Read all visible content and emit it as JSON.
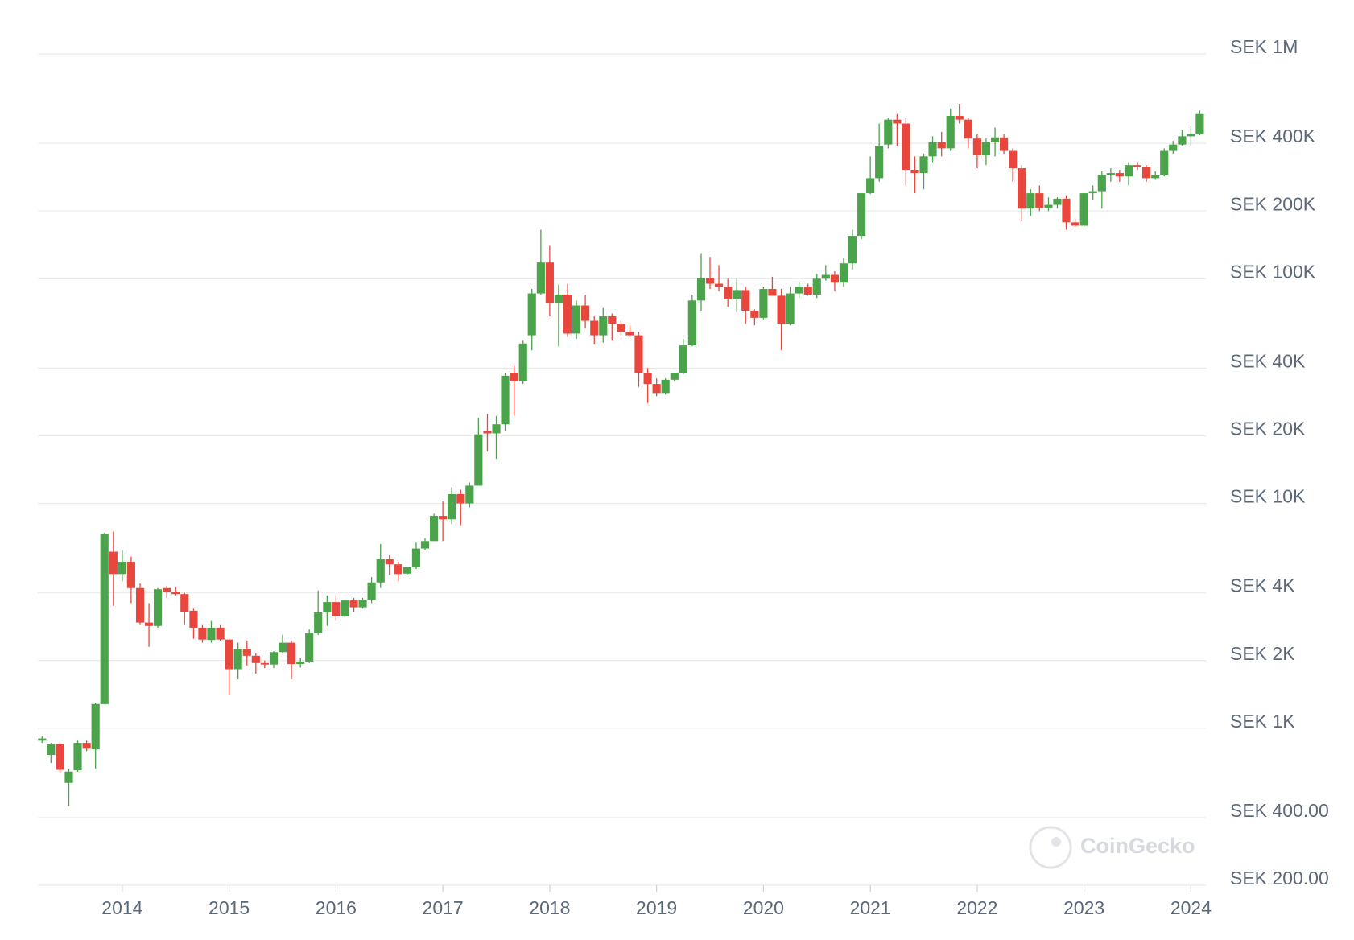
{
  "chart_data": {
    "type": "candlestick",
    "watermark": "CoinGecko",
    "up_color": "#4ba44b",
    "down_color": "#e9473e",
    "log_scale_y": true,
    "grid": true,
    "xlim": [
      2013.21,
      2024.14
    ],
    "xticks": [
      2014,
      2015,
      2016,
      2017,
      2018,
      2019,
      2020,
      2021,
      2022,
      2023,
      2024
    ],
    "ylim": [
      200,
      1000000
    ],
    "yticks": [
      {
        "value": 200,
        "label": "SEK 200.00"
      },
      {
        "value": 400,
        "label": "SEK 400.00"
      },
      {
        "value": 1000,
        "label": "SEK 1K"
      },
      {
        "value": 2000,
        "label": "SEK 2K"
      },
      {
        "value": 4000,
        "label": "SEK 4K"
      },
      {
        "value": 10000,
        "label": "SEK 10K"
      },
      {
        "value": 20000,
        "label": "SEK 20K"
      },
      {
        "value": 40000,
        "label": "SEK 40K"
      },
      {
        "value": 100000,
        "label": "SEK 100K"
      },
      {
        "value": 200000,
        "label": "SEK 200K"
      },
      {
        "value": 400000,
        "label": "SEK 400K"
      },
      {
        "value": 1000000,
        "label": "SEK 1M"
      }
    ],
    "x": [
      2013.25,
      2013.333,
      2013.417,
      2013.5,
      2013.583,
      2013.667,
      2013.75,
      2013.833,
      2013.917,
      2014,
      2014.083,
      2014.167,
      2014.25,
      2014.333,
      2014.417,
      2014.5,
      2014.583,
      2014.667,
      2014.75,
      2014.833,
      2014.917,
      2015,
      2015.083,
      2015.167,
      2015.25,
      2015.333,
      2015.417,
      2015.5,
      2015.583,
      2015.667,
      2015.75,
      2015.833,
      2015.917,
      2016,
      2016.083,
      2016.167,
      2016.25,
      2016.333,
      2016.417,
      2016.5,
      2016.583,
      2016.667,
      2016.75,
      2016.833,
      2016.917,
      2017,
      2017.083,
      2017.167,
      2017.25,
      2017.333,
      2017.417,
      2017.5,
      2017.583,
      2017.667,
      2017.75,
      2017.833,
      2017.917,
      2018,
      2018.083,
      2018.167,
      2018.25,
      2018.333,
      2018.417,
      2018.5,
      2018.583,
      2018.667,
      2018.75,
      2018.833,
      2018.917,
      2019,
      2019.083,
      2019.167,
      2019.25,
      2019.333,
      2019.417,
      2019.5,
      2019.583,
      2019.667,
      2019.75,
      2019.833,
      2019.917,
      2020,
      2020.083,
      2020.167,
      2020.25,
      2020.333,
      2020.417,
      2020.5,
      2020.583,
      2020.667,
      2020.75,
      2020.833,
      2020.917,
      2021,
      2021.083,
      2021.167,
      2021.25,
      2021.333,
      2021.417,
      2021.5,
      2021.583,
      2021.667,
      2021.75,
      2021.833,
      2021.917,
      2022,
      2022.083,
      2022.167,
      2022.25,
      2022.333,
      2022.417,
      2022.5,
      2022.583,
      2022.667,
      2022.75,
      2022.833,
      2022.917,
      2023,
      2023.083,
      2023.167,
      2023.25,
      2023.333,
      2023.417,
      2023.5,
      2023.583,
      2023.667,
      2023.75,
      2023.833,
      2023.917,
      2024,
      2024.083
    ],
    "open": [
      880,
      760,
      850,
      571,
      650,
      860,
      805,
      1280,
      6100,
      4850,
      5500,
      4200,
      2950,
      2850,
      4200,
      4050,
      3950,
      3330,
      2800,
      2470,
      2800,
      2480,
      1830,
      2250,
      2100,
      1950,
      1920,
      2180,
      2400,
      1930,
      1980,
      2650,
      3280,
      3640,
      3150,
      3700,
      3450,
      3730,
      4450,
      5650,
      5360,
      4870,
      5200,
      6300,
      6800,
      8800,
      8500,
      11000,
      10000,
      12000,
      21000,
      20500,
      22500,
      38000,
      35000,
      56000,
      86000,
      118000,
      78000,
      85000,
      57000,
      76000,
      65000,
      56000,
      68000,
      63000,
      58000,
      56000,
      38000,
      34000,
      31000,
      35500,
      38000,
      50500,
      80000,
      101000,
      95000,
      92000,
      81000,
      89000,
      72000,
      67000,
      90000,
      84000,
      63000,
      86000,
      92000,
      85000,
      100000,
      104000,
      96000,
      117000,
      155000,
      240000,
      280000,
      395000,
      510000,
      490000,
      305000,
      295000,
      350000,
      405000,
      380000,
      530000,
      510000,
      420000,
      355000,
      405000,
      425000,
      370000,
      310000,
      205000,
      240000,
      206000,
      213000,
      227000,
      178000,
      172000,
      240000,
      245000,
      290000,
      295000,
      285000,
      320000,
      315000,
      280000,
      290000,
      370000,
      395000,
      430000,
      440000
    ],
    "high": [
      920,
      860,
      860,
      660,
      880,
      880,
      1300,
      7400,
      7500,
      6200,
      5800,
      4400,
      3600,
      4200,
      4300,
      4250,
      4000,
      3400,
      2900,
      3000,
      2900,
      2500,
      2400,
      2450,
      2150,
      2000,
      2200,
      2600,
      2450,
      2050,
      2750,
      4100,
      3900,
      3900,
      3700,
      3800,
      3800,
      4700,
      6600,
      5900,
      5500,
      5200,
      6700,
      7000,
      9000,
      10200,
      11800,
      11500,
      12400,
      24000,
      25000,
      24500,
      38000,
      41000,
      53000,
      90000,
      165000,
      140000,
      94000,
      95000,
      80000,
      85000,
      68000,
      74000,
      70000,
      65000,
      62000,
      58000,
      40000,
      36000,
      36000,
      38000,
      54000,
      85000,
      130000,
      125000,
      115000,
      100000,
      100000,
      92000,
      73000,
      92000,
      102000,
      90000,
      92000,
      96000,
      95000,
      105000,
      115000,
      108000,
      124000,
      165000,
      240000,
      350000,
      490000,
      520000,
      540000,
      520000,
      350000,
      360000,
      430000,
      450000,
      570000,
      600000,
      520000,
      440000,
      420000,
      470000,
      440000,
      380000,
      320000,
      250000,
      260000,
      230000,
      230000,
      235000,
      185000,
      240000,
      260000,
      300000,
      310000,
      305000,
      330000,
      330000,
      320000,
      300000,
      380000,
      410000,
      460000,
      480000,
      560000
    ],
    "low": [
      860,
      700,
      640,
      450,
      640,
      790,
      660,
      1280,
      3500,
      4500,
      3600,
      2900,
      2300,
      2800,
      3800,
      3900,
      2900,
      2500,
      2400,
      2400,
      2450,
      1400,
      1650,
      1900,
      1750,
      1850,
      1850,
      2150,
      1650,
      1860,
      1950,
      2600,
      2850,
      3000,
      3100,
      3300,
      3400,
      3600,
      4200,
      4800,
      4500,
      4800,
      5100,
      6200,
      6800,
      6800,
      8100,
      8000,
      9600,
      12000,
      17000,
      15800,
      21000,
      24500,
      34000,
      48000,
      85000,
      68000,
      50000,
      55000,
      54000,
      60000,
      51000,
      52000,
      53000,
      56000,
      55000,
      33000,
      28000,
      30000,
      30500,
      35000,
      37500,
      50000,
      72000,
      90000,
      88000,
      75000,
      71000,
      63000,
      62000,
      66000,
      84000,
      48000,
      62000,
      82000,
      84000,
      82000,
      98000,
      88000,
      92000,
      110000,
      150000,
      238000,
      270000,
      380000,
      390000,
      260000,
      240000,
      250000,
      330000,
      350000,
      370000,
      490000,
      380000,
      310000,
      320000,
      350000,
      360000,
      270000,
      180000,
      190000,
      200000,
      200000,
      205000,
      165000,
      170000,
      170000,
      225000,
      205000,
      270000,
      270000,
      260000,
      305000,
      270000,
      275000,
      285000,
      360000,
      390000,
      390000,
      435000
    ],
    "close": [
      900,
      850,
      653,
      641,
      860,
      810,
      1282,
      7300,
      4850,
      5500,
      4200,
      2950,
      2850,
      4150,
      4050,
      3950,
      3300,
      2800,
      2480,
      2800,
      2480,
      1830,
      2250,
      2100,
      1950,
      1920,
      2180,
      2400,
      1930,
      1980,
      2650,
      3280,
      3640,
      3150,
      3700,
      3450,
      3730,
      4450,
      5650,
      5360,
      4850,
      5200,
      6300,
      6800,
      8800,
      8500,
      11000,
      10000,
      12000,
      20300,
      20500,
      22500,
      37000,
      35000,
      51500,
      86000,
      118000,
      78000,
      85000,
      57000,
      76000,
      65000,
      56000,
      68000,
      63000,
      58000,
      56000,
      38000,
      34000,
      31000,
      35500,
      38000,
      50500,
      80000,
      101000,
      95000,
      92000,
      81000,
      89000,
      72000,
      67000,
      90000,
      84000,
      63000,
      86000,
      92000,
      85000,
      100000,
      104000,
      96000,
      117000,
      155000,
      240000,
      280000,
      390000,
      510000,
      490000,
      305000,
      295000,
      350000,
      405000,
      380000,
      530000,
      510000,
      420000,
      355000,
      405000,
      425000,
      370000,
      310000,
      205000,
      240000,
      206000,
      213000,
      227000,
      178000,
      172000,
      240000,
      245000,
      290000,
      295000,
      285000,
      320000,
      315000,
      280000,
      290000,
      370000,
      395000,
      430000,
      440000,
      540000
    ]
  }
}
